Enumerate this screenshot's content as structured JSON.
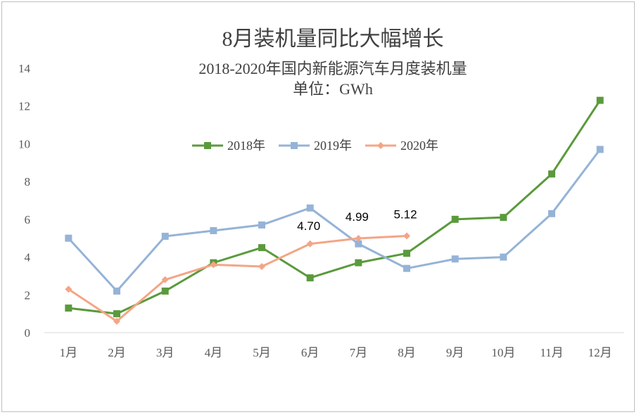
{
  "chart_data": {
    "type": "line",
    "title": "8月装机量同比大幅增长",
    "subtitle_lines": [
      "2018-2020年国内新能源汽车月度装机量",
      "单位：GWh"
    ],
    "categories": [
      "1月",
      "2月",
      "3月",
      "4月",
      "5月",
      "6月",
      "7月",
      "8月",
      "9月",
      "10月",
      "11月",
      "12月"
    ],
    "y_ticks": [
      "0",
      "2",
      "4",
      "6",
      "8",
      "10",
      "12",
      "14"
    ],
    "ylim": [
      0,
      14
    ],
    "grid": false,
    "legend_position": "top-center",
    "series": [
      {
        "name": "2018年",
        "color": "#5a9a3c",
        "marker": "square",
        "values": [
          1.3,
          1.0,
          2.2,
          3.7,
          4.5,
          2.9,
          3.7,
          4.2,
          6.0,
          6.1,
          8.4,
          12.3
        ]
      },
      {
        "name": "2019年",
        "color": "#95b3d7",
        "marker": "square",
        "values": [
          5.0,
          2.2,
          5.1,
          5.4,
          5.7,
          6.6,
          4.7,
          3.4,
          3.9,
          4.0,
          6.3,
          9.7
        ]
      },
      {
        "name": "2020年",
        "color": "#f4a586",
        "marker": "diamond",
        "values": [
          2.3,
          0.6,
          2.8,
          3.6,
          3.5,
          4.7,
          4.99,
          5.12,
          null,
          null,
          null,
          null
        ]
      }
    ],
    "annotations": [
      {
        "category": "6月",
        "label": "4.70"
      },
      {
        "category": "7月",
        "label": "4.99"
      },
      {
        "category": "8月",
        "label": "5.12"
      }
    ]
  }
}
